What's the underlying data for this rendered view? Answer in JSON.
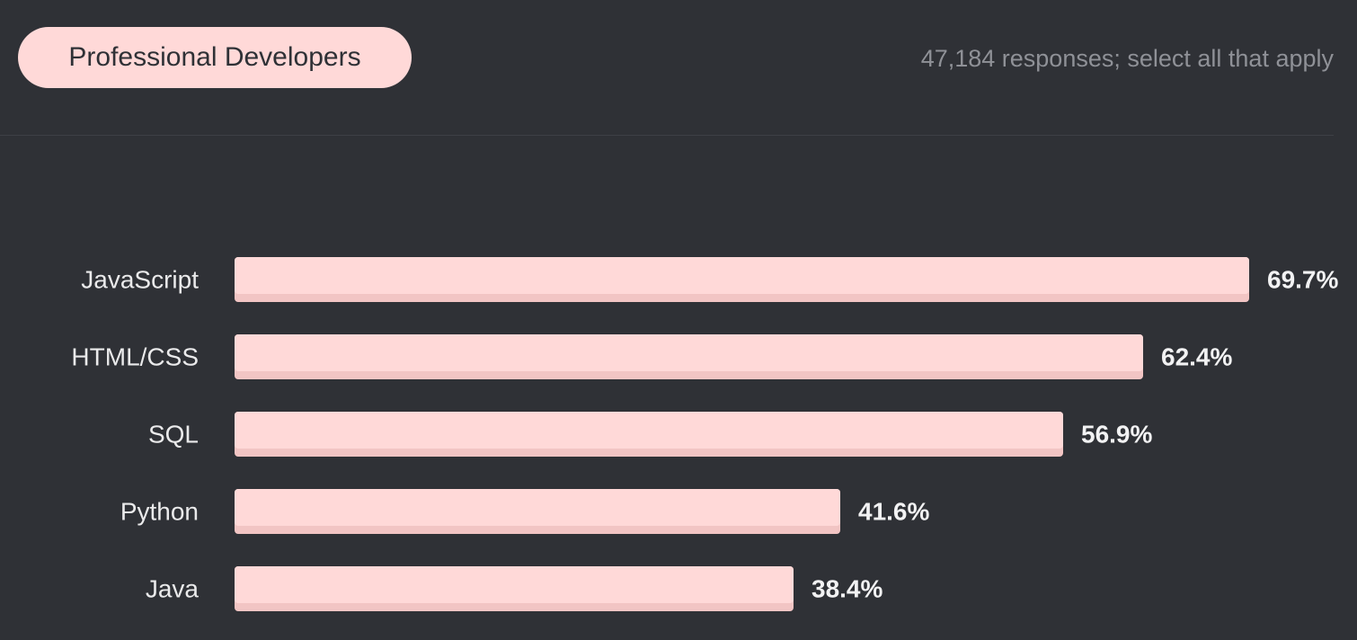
{
  "header": {
    "filter_label": "Professional Developers",
    "responses_note": "47,184 responses; select all that apply"
  },
  "colors": {
    "background": "#2f3136",
    "bar": "#ffd9d8",
    "bar_shadow": "#f2c5c4",
    "label": "#eaeaeb",
    "note": "#8f9197"
  },
  "chart_data": {
    "type": "bar",
    "orientation": "horizontal",
    "title": "",
    "xlabel": "",
    "ylabel": "",
    "categories": [
      "JavaScript",
      "HTML/CSS",
      "SQL",
      "Python",
      "Java"
    ],
    "values": [
      69.7,
      62.4,
      56.9,
      41.6,
      38.4
    ],
    "value_labels": [
      "69.7%",
      "62.4%",
      "56.9%",
      "41.6%",
      "38.4%"
    ],
    "xlim": [
      0,
      69.7
    ],
    "grid": false,
    "legend": "none"
  }
}
